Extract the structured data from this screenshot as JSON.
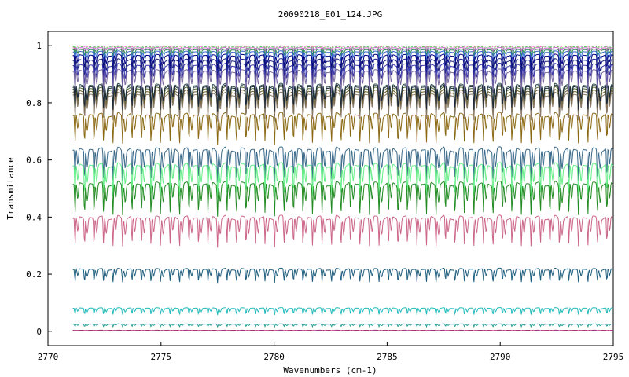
{
  "chart_data": {
    "type": "line",
    "title": "20090218_E01_124.JPG",
    "xlabel": "Wavenumbers (cm-1)",
    "ylabel": "Transmitance",
    "xlim": [
      2770,
      2795
    ],
    "ylim": [
      -0.05,
      1.05
    ],
    "x_ticks": [
      2770,
      2775,
      2780,
      2785,
      2790,
      2795
    ],
    "y_ticks": [
      0,
      0.2,
      0.4,
      0.6,
      0.8,
      1
    ],
    "x_range_data": [
      2771.1,
      2795
    ],
    "grid": false,
    "legend": "none",
    "series": [
      {
        "color": "#ff66cc",
        "baseline": 1.0,
        "depth": 0.005,
        "dash": true
      },
      {
        "color": "#66cc66",
        "baseline": 0.998,
        "depth": 0.01,
        "dash": true
      },
      {
        "color": "#cc66cc",
        "baseline": 0.995,
        "depth": 0.015
      },
      {
        "color": "#2e8b57",
        "baseline": 0.99,
        "depth": 0.025
      },
      {
        "color": "#3366cc",
        "baseline": 0.985,
        "depth": 0.04
      },
      {
        "color": "#000080",
        "baseline": 0.975,
        "depth": 0.055
      },
      {
        "color": "#1a237e",
        "baseline": 0.96,
        "depth": 0.07
      },
      {
        "color": "#3333aa",
        "baseline": 0.945,
        "depth": 0.085
      },
      {
        "color": "#7a6aa0",
        "baseline": 0.925,
        "depth": 0.09
      },
      {
        "color": "#2f4f4f",
        "baseline": 0.875,
        "depth": 0.09
      },
      {
        "color": "#556b2f",
        "baseline": 0.865,
        "depth": 0.1
      },
      {
        "color": "#6b5a2a",
        "baseline": 0.855,
        "depth": 0.1
      },
      {
        "color": "#8a7a66",
        "baseline": 0.845,
        "depth": 0.1
      },
      {
        "color": "#1b2a3a",
        "baseline": 0.87,
        "depth": 0.09
      },
      {
        "color": "#8b6914",
        "baseline": 0.775,
        "depth": 0.11
      },
      {
        "color": "#3a6a8a",
        "baseline": 0.655,
        "depth": 0.12
      },
      {
        "color": "#66ee88",
        "baseline": 0.6,
        "depth": 0.12
      },
      {
        "color": "#228b22",
        "baseline": 0.535,
        "depth": 0.12
      },
      {
        "color": "#cc6688",
        "baseline": 0.415,
        "depth": 0.11
      },
      {
        "color": "#1f5f7f",
        "baseline": 0.225,
        "depth": 0.05
      },
      {
        "color": "#22bbbb",
        "baseline": 0.085,
        "depth": 0.025
      },
      {
        "color": "#2aa198",
        "baseline": 0.027,
        "depth": 0.01
      },
      {
        "color": "#cc3366",
        "baseline": 0.004,
        "depth": 0.002
      },
      {
        "color": "#663399",
        "baseline": 0.002,
        "depth": 0.001
      }
    ]
  }
}
